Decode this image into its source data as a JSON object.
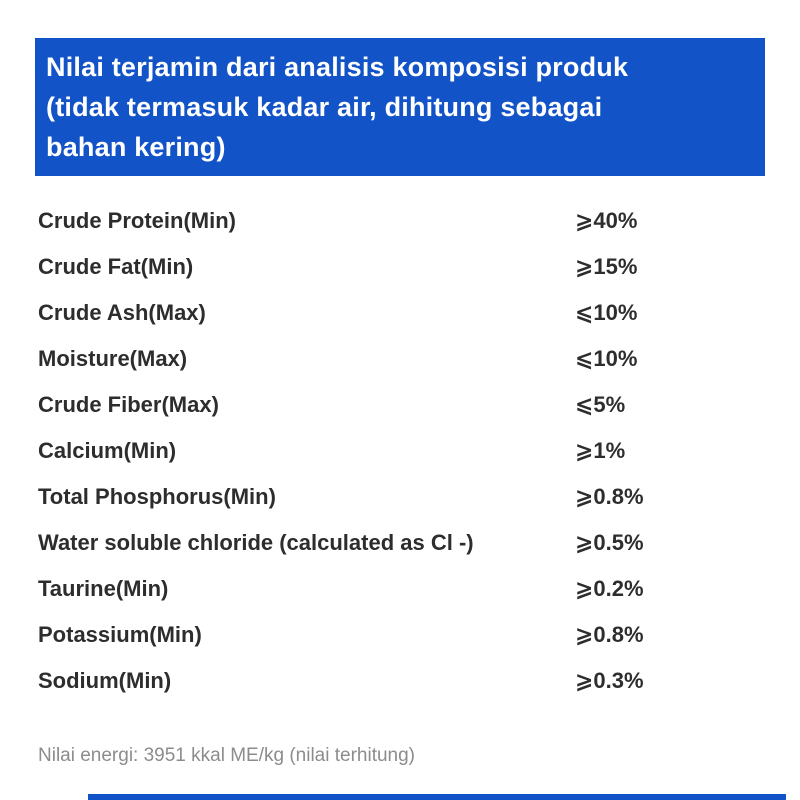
{
  "header": {
    "lines": [
      "Nilai terjamin dari analisis komposisi produk",
      "(tidak termasuk kadar air, dihitung sebagai",
      "bahan kering)"
    ],
    "background_color": "#1253c8",
    "text_color": "#ffffff"
  },
  "nutrition_table": {
    "rows": [
      {
        "label": "Crude Protein(Min)",
        "value": "⩾40%"
      },
      {
        "label": "Crude Fat(Min)",
        "value": "⩾15%"
      },
      {
        "label": "Crude Ash(Max)",
        "value": "⩽10%"
      },
      {
        "label": "Moisture(Max)",
        "value": "⩽10%"
      },
      {
        "label": "Crude Fiber(Max)",
        "value": "⩽5%"
      },
      {
        "label": "Calcium(Min)",
        "value": "⩾1%"
      },
      {
        "label": "Total Phosphorus(Min)",
        "value": "⩾0.8%"
      },
      {
        "label": "Water soluble chloride (calculated as Cl -)",
        "value": "⩾0.5%"
      },
      {
        "label": "Taurine(Min)",
        "value": "⩾0.2%"
      },
      {
        "label": "Potassium(Min)",
        "value": "⩾0.8%"
      },
      {
        "label": "Sodium(Min)",
        "value": "⩾0.3%"
      }
    ],
    "text_color": "#2d2d2d"
  },
  "footer": {
    "energy_note": "Nilai energi: 3951 kkal ME/kg (nilai terhitung)",
    "text_color": "#8c8c8c"
  },
  "bottom_bar": {
    "color": "#1253c8"
  }
}
